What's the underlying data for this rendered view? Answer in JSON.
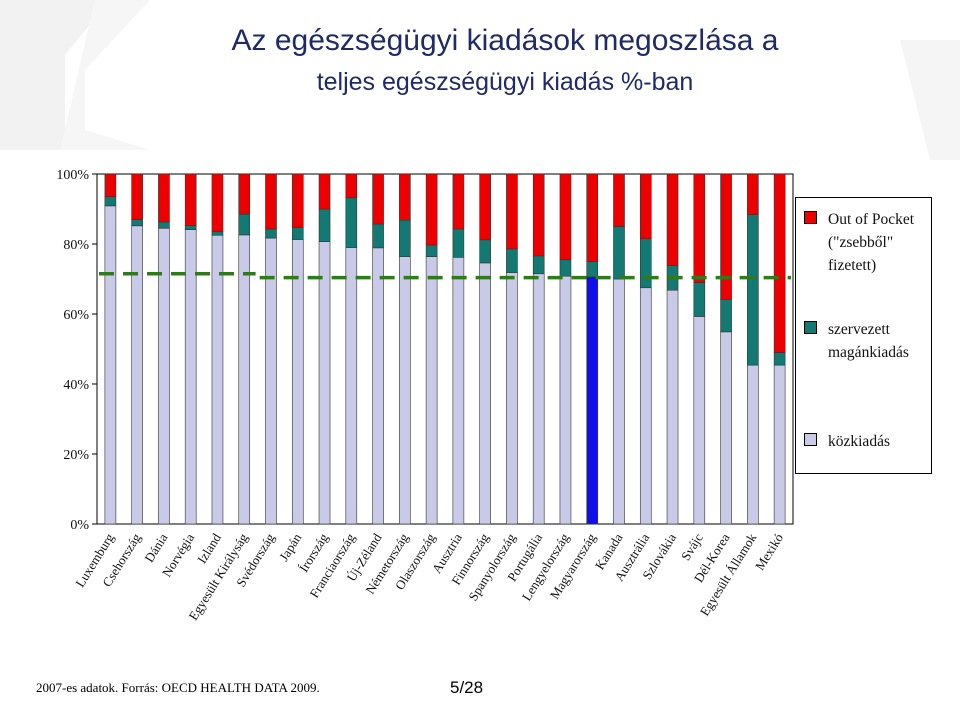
{
  "title": {
    "line1": "Az egészségügyi kiadások megoszlása a",
    "line2": "teljes egészségügyi kiadás %-ban"
  },
  "footer": {
    "source": "2007-es adatok. Forrás: OECD HEALTH DATA 2009.",
    "page": "5/28"
  },
  "colors": {
    "public": "#c9c9e8",
    "private_org": "#127a72",
    "oop": "#ee0000",
    "highlight": "#1010ee",
    "avg_line": "#2f7a1b",
    "title": "#1f2a66"
  },
  "legend": [
    {
      "label": "Out of Pocket (\"zsebből\" fizetett)",
      "color": "#ee0000"
    },
    {
      "label": "szervezett magánkiadás",
      "color": "#127a72"
    },
    {
      "label": "közkiadás",
      "color": "#c9c9e8"
    }
  ],
  "chart_data": {
    "type": "bar",
    "stacked": true,
    "ylim": [
      0,
      100
    ],
    "yticks": [
      "0%",
      "20%",
      "40%",
      "60%",
      "80%",
      "100%"
    ],
    "categories": [
      "Luxemburg",
      "Csehország",
      "Dánia",
      "Norvégia",
      "Izland",
      "Egyesült Királyság",
      "Svédország",
      "Japán",
      "Írország",
      "Franciaország",
      "Új-Zéland",
      "Németország",
      "Olaszország",
      "Ausztria",
      "Finnország",
      "Spanyolország",
      "Portugália",
      "Lengyelország",
      "Magyarország",
      "Kanada",
      "Ausztrália",
      "Szlovákia",
      "Svájc",
      "Dél-Korea",
      "Egyesült Államok",
      "Mexikó"
    ],
    "series": [
      {
        "name": "közkiadás",
        "values": [
          90.9,
          85.2,
          84.5,
          84.1,
          82.5,
          82.6,
          81.7,
          81.3,
          80.7,
          79.0,
          78.9,
          76.4,
          76.4,
          76.2,
          74.6,
          71.8,
          71.5,
          70.8,
          70.6,
          70.0,
          67.5,
          66.8,
          59.3,
          54.9,
          45.4,
          45.4
        ]
      },
      {
        "name": "szervezett magánkiadás",
        "values": [
          2.6,
          1.8,
          1.8,
          1.2,
          1.0,
          5.9,
          2.6,
          3.4,
          9.3,
          14.2,
          6.8,
          10.4,
          3.3,
          8.1,
          6.6,
          6.8,
          5.1,
          4.7,
          4.4,
          15.0,
          14.0,
          7.0,
          9.7,
          9.3,
          43.0,
          3.6
        ]
      },
      {
        "name": "Out of Pocket (\"zsebből\" fizetett)",
        "values": [
          6.5,
          13.0,
          13.7,
          14.7,
          16.5,
          11.5,
          15.7,
          15.3,
          10.0,
          6.8,
          14.3,
          13.2,
          20.3,
          15.7,
          18.8,
          21.4,
          23.4,
          24.5,
          25.0,
          15.0,
          18.5,
          26.2,
          31.0,
          35.8,
          11.6,
          51.0
        ]
      }
    ],
    "highlight_category": "Magyarország",
    "average_line": [
      {
        "from": "Luxemburg",
        "to": "Egyesült Királyság",
        "value": 71.5
      },
      {
        "from": "Svédország",
        "to": "Mexikó",
        "value": 70.4
      }
    ]
  }
}
